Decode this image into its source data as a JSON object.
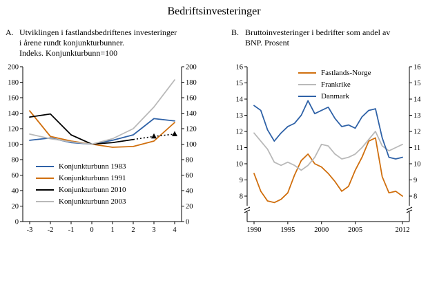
{
  "title": "Bedriftsinvesteringer",
  "panels": {
    "a": {
      "label": "A.",
      "lines": [
        "Utviklingen i fastlandsbedriftenes investeringer",
        "i årene rundt konjunkturbunner.",
        "Indeks. Konjunkturbunn=100"
      ]
    },
    "b": {
      "label": "B.",
      "lines": [
        "Bruttoinvesteringer i bedrifter som andel av",
        "BNP. Prosent"
      ]
    }
  },
  "colors": {
    "blue": "#2f62a7",
    "orange": "#d06f0e",
    "black": "#000000",
    "gray": "#b9b9b9"
  },
  "chart_data": [
    {
      "type": "line",
      "title": "A. Utviklingen i fastlandsbedriftenes investeringer i årene rundt konjunkturbunner. Indeks. Konjunkturbunn=100",
      "x": [
        -3,
        -2,
        -1,
        0,
        1,
        2,
        3,
        4
      ],
      "xticks": [
        {
          "v": -3,
          "label": "-3"
        },
        {
          "v": -2,
          "label": "-2"
        },
        {
          "v": -1,
          "label": "-1"
        },
        {
          "v": 0,
          "label": "0"
        },
        {
          "v": 1,
          "label": "1"
        },
        {
          "v": 2,
          "label": "2"
        },
        {
          "v": 3,
          "label": "3"
        },
        {
          "v": 4,
          "label": "4"
        }
      ],
      "ylim": [
        0,
        200
      ],
      "yticks": [
        0,
        20,
        40,
        60,
        80,
        100,
        120,
        140,
        160,
        180,
        200
      ],
      "grid": false,
      "legend_position": "lower-left-inside",
      "axis_break": false,
      "series": [
        {
          "name": "Konjunkturbunn 1983",
          "color": "#2f62a7",
          "values": [
            105,
            108,
            102,
            100,
            105,
            112,
            133,
            130
          ]
        },
        {
          "name": "Konjunkturbunn 1991",
          "color": "#d06f0e",
          "values": [
            143,
            110,
            104,
            100,
            96,
            97,
            104,
            128
          ]
        },
        {
          "name": "Konjunkturbunn 2010",
          "color": "#000000",
          "values": [
            135,
            139,
            112,
            100,
            102,
            106,
            null,
            null
          ],
          "projection": {
            "x": [
              2,
              3,
              4
            ],
            "values": [
              106,
              110,
              113
            ],
            "style": "dotted",
            "marker": "triangle"
          }
        },
        {
          "name": "Konjunkturbunn 2003",
          "color": "#b9b9b9",
          "values": [
            113,
            107,
            103,
            100,
            107,
            120,
            148,
            183
          ]
        }
      ]
    },
    {
      "type": "line",
      "title": "B. Bruttoinvesteringer i bedrifter som andel av BNP. Prosent",
      "x": [
        1990,
        1991,
        1992,
        1993,
        1994,
        1995,
        1996,
        1997,
        1998,
        1999,
        2000,
        2001,
        2002,
        2003,
        2004,
        2005,
        2006,
        2007,
        2008,
        2009,
        2010,
        2011,
        2012
      ],
      "xticks": [
        {
          "v": 1990,
          "label": "1990"
        },
        {
          "v": 1995,
          "label": "1995"
        },
        {
          "v": 2000,
          "label": "2000"
        },
        {
          "v": 2005,
          "label": "2005"
        },
        {
          "v": 2012,
          "label": "2012"
        }
      ],
      "ylim": [
        8,
        16
      ],
      "yticks": [
        8,
        9,
        10,
        11,
        12,
        13,
        14,
        15,
        16
      ],
      "grid": false,
      "legend_position": "upper-center-inside",
      "axis_break": true,
      "series": [
        {
          "name": "Fastlands-Norge",
          "color": "#d06f0e",
          "values": [
            9.4,
            8.3,
            7.7,
            7.6,
            7.8,
            8.2,
            9.3,
            10.2,
            10.6,
            10.0,
            9.8,
            9.4,
            8.9,
            8.3,
            8.6,
            9.6,
            10.4,
            11.4,
            11.6,
            9.2,
            8.2,
            8.3,
            8.0
          ]
        },
        {
          "name": "Frankrike",
          "color": "#b9b9b9",
          "values": [
            11.9,
            11.4,
            10.9,
            10.1,
            9.9,
            10.1,
            9.9,
            9.6,
            9.9,
            10.4,
            11.2,
            11.1,
            10.6,
            10.3,
            10.4,
            10.6,
            11.0,
            11.5,
            12.0,
            11.1,
            10.8,
            11.0,
            11.2
          ]
        },
        {
          "name": "Danmark",
          "color": "#2f62a7",
          "values": [
            13.6,
            13.3,
            12.1,
            11.4,
            11.9,
            12.3,
            12.5,
            13.0,
            13.9,
            13.1,
            13.3,
            13.5,
            12.8,
            12.3,
            12.4,
            12.2,
            12.9,
            13.3,
            13.4,
            11.6,
            10.4,
            10.3,
            10.4
          ]
        }
      ]
    }
  ]
}
